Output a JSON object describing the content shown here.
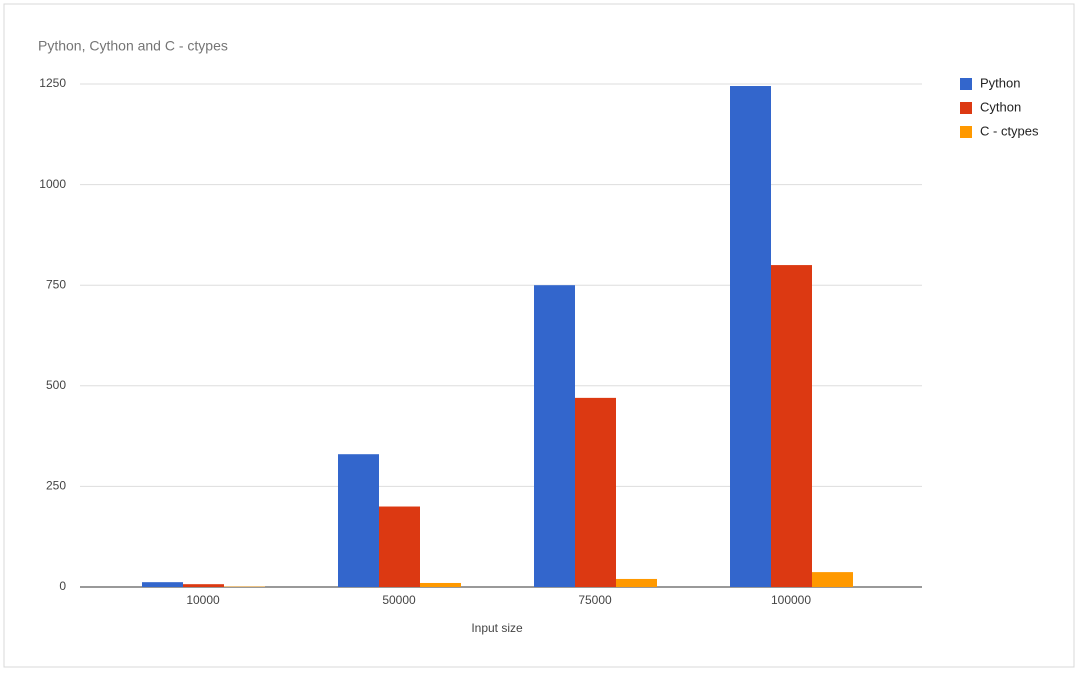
{
  "chart_data": {
    "type": "bar",
    "title": "Python, Cython and C - ctypes",
    "x_label": "Input size",
    "categories": [
      "10000",
      "50000",
      "75000",
      "100000"
    ],
    "series": [
      {
        "name": "Python",
        "color": "#3366cc",
        "values": [
          12,
          330,
          750,
          1245
        ]
      },
      {
        "name": "Cython",
        "color": "#dc3912",
        "values": [
          7,
          200,
          470,
          800
        ]
      },
      {
        "name": "C - ctypes",
        "color": "#ff9900",
        "values": [
          1,
          10,
          20,
          37
        ]
      }
    ],
    "ylim": [
      0,
      1250
    ],
    "yticks": [
      0,
      250,
      500,
      750,
      1000,
      1250
    ],
    "grid": true,
    "legend": "right"
  }
}
